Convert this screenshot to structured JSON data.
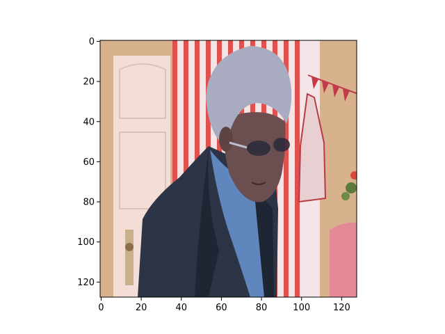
{
  "chart_data": {
    "type": "image",
    "title": "",
    "xlabel": "",
    "ylabel": "",
    "image_size": [
      128,
      128
    ],
    "xlim": [
      -0.5,
      127.5
    ],
    "ylim": [
      127.5,
      -0.5
    ],
    "y_origin": "top",
    "grid": false,
    "legend": "none",
    "xticks": [
      0,
      20,
      40,
      60,
      80,
      100,
      120
    ],
    "yticks": [
      0,
      20,
      40,
      60,
      80,
      100,
      120
    ],
    "xtick_labels": [
      "0",
      "20",
      "40",
      "60",
      "80",
      "100",
      "120"
    ],
    "ytick_labels": [
      "0",
      "20",
      "40",
      "60",
      "80",
      "100",
      "120"
    ],
    "image_content": "pixelated photo of an elderly man with grey hair and glasses, wearing a dark blazer over a blue shirt, standing in front of a white door, red-and-white striped curtain and pink decorations",
    "colors": {
      "wall": "#d7b28c",
      "door": "#f2ddd7",
      "curtain_red": "#e0524f",
      "curtain_white": "#f5e4e4",
      "hair": "#a9acc0",
      "skin": "#6a4e50",
      "jacket": "#2c3445",
      "shirt": "#5f86bd",
      "table_pink": "#e48a94"
    }
  }
}
